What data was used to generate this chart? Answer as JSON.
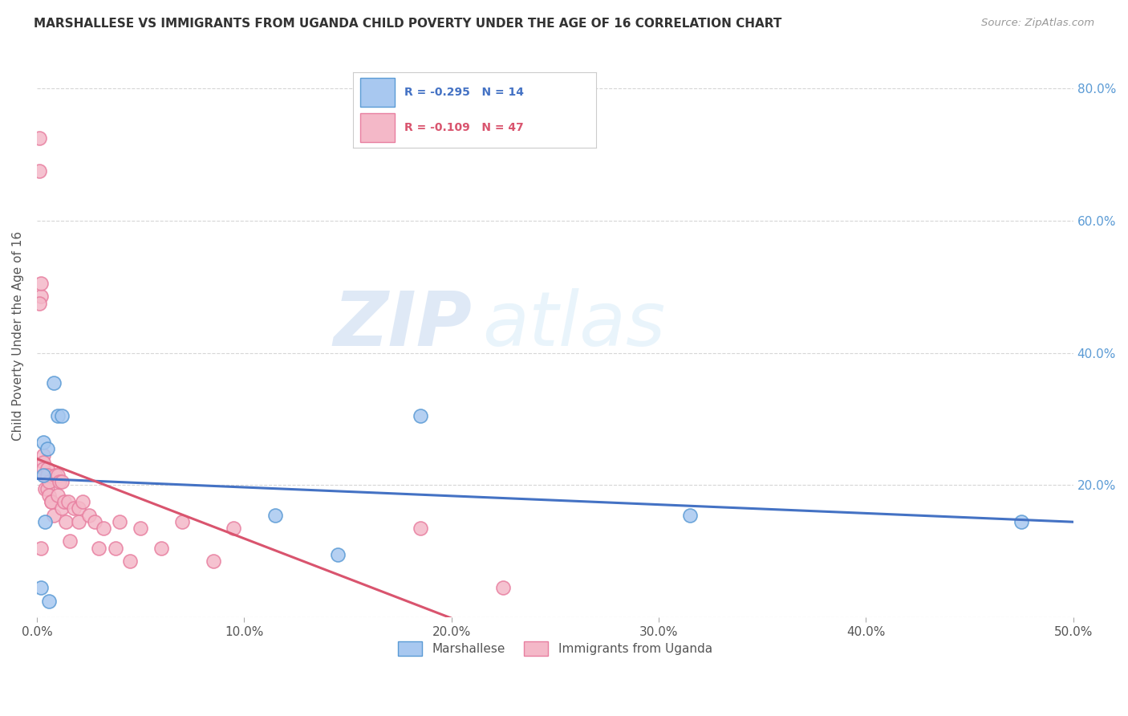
{
  "title": "MARSHALLESE VS IMMIGRANTS FROM UGANDA CHILD POVERTY UNDER THE AGE OF 16 CORRELATION CHART",
  "source": "Source: ZipAtlas.com",
  "ylabel_label": "Child Poverty Under the Age of 16",
  "xlim": [
    0.0,
    0.5
  ],
  "ylim": [
    0.0,
    0.85
  ],
  "xtick_vals": [
    0.0,
    0.1,
    0.2,
    0.3,
    0.4,
    0.5
  ],
  "xtick_labels": [
    "0.0%",
    "10.0%",
    "20.0%",
    "30.0%",
    "40.0%",
    "50.0%"
  ],
  "ytick_vals": [
    0.0,
    0.2,
    0.4,
    0.6,
    0.8
  ],
  "right_ytick_labels": [
    "",
    "20.0%",
    "40.0%",
    "60.0%",
    "80.0%"
  ],
  "marshallese_color": "#a8c8f0",
  "marshallese_edge_color": "#5b9bd5",
  "uganda_color": "#f4b8c8",
  "uganda_edge_color": "#e87fa0",
  "marshallese_R": -0.295,
  "marshallese_N": 14,
  "uganda_R": -0.109,
  "uganda_N": 47,
  "trend_marshallese_color": "#4472c4",
  "trend_uganda_color": "#d9546e",
  "watermark_zip": "ZIP",
  "watermark_atlas": "atlas",
  "legend_label_marshallese": "Marshallese",
  "legend_label_uganda": "Immigrants from Uganda",
  "background_color": "#ffffff",
  "grid_color": "#bbbbbb",
  "marshallese_x": [
    0.002,
    0.003,
    0.003,
    0.004,
    0.005,
    0.006,
    0.008,
    0.01,
    0.012,
    0.115,
    0.145,
    0.185,
    0.315,
    0.475
  ],
  "marshallese_y": [
    0.045,
    0.215,
    0.265,
    0.145,
    0.255,
    0.025,
    0.355,
    0.305,
    0.305,
    0.155,
    0.095,
    0.305,
    0.155,
    0.145
  ],
  "uganda_x": [
    0.001,
    0.001,
    0.002,
    0.002,
    0.002,
    0.003,
    0.003,
    0.003,
    0.004,
    0.004,
    0.005,
    0.005,
    0.005,
    0.006,
    0.006,
    0.007,
    0.007,
    0.008,
    0.009,
    0.01,
    0.01,
    0.011,
    0.012,
    0.012,
    0.013,
    0.014,
    0.015,
    0.016,
    0.018,
    0.02,
    0.02,
    0.022,
    0.025,
    0.028,
    0.03,
    0.032,
    0.038,
    0.04,
    0.045,
    0.05,
    0.06,
    0.07,
    0.085,
    0.095,
    0.185,
    0.225,
    0.001
  ],
  "uganda_y": [
    0.675,
    0.725,
    0.105,
    0.485,
    0.505,
    0.245,
    0.235,
    0.225,
    0.215,
    0.195,
    0.225,
    0.215,
    0.195,
    0.205,
    0.185,
    0.175,
    0.175,
    0.155,
    0.215,
    0.215,
    0.185,
    0.205,
    0.205,
    0.165,
    0.175,
    0.145,
    0.175,
    0.115,
    0.165,
    0.165,
    0.145,
    0.175,
    0.155,
    0.145,
    0.105,
    0.135,
    0.105,
    0.145,
    0.085,
    0.135,
    0.105,
    0.145,
    0.085,
    0.135,
    0.135,
    0.045,
    0.475
  ]
}
